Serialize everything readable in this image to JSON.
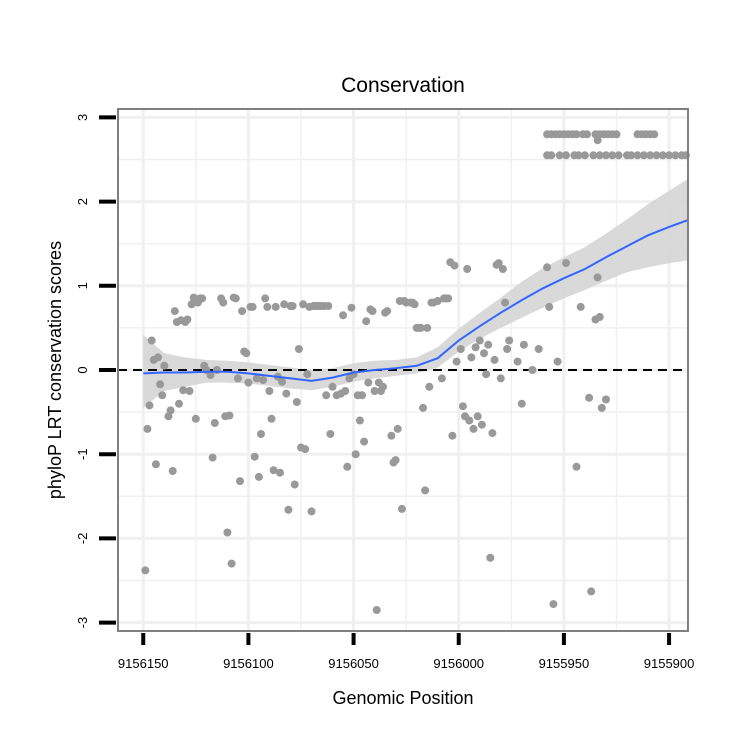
{
  "chart_data": {
    "type": "scatter",
    "title": "Conservation",
    "xlabel": "Genomic Position",
    "ylabel": "phyloP LRT conservation scores",
    "x_reversed": true,
    "xlim": [
      9156162,
      9155891
    ],
    "ylim": [
      -3.1,
      3.1
    ],
    "x_ticks": [
      9156150,
      9156100,
      9156050,
      9156000,
      9155950,
      9155900
    ],
    "x_tick_labels": [
      "9156150",
      "9156100",
      "9156050",
      "9156000",
      "9155950",
      "9155900"
    ],
    "y_ticks": [
      -3,
      -2,
      -1,
      0,
      1,
      2,
      3
    ],
    "y_tick_labels": [
      "-3",
      "-2",
      "-1",
      "0",
      "1",
      "2",
      "3"
    ],
    "reference_line": {
      "y": 0,
      "style": "dashed"
    },
    "colors": {
      "points": "#999999",
      "smooth": "#3366ff",
      "ribbon": "#d5d5d5",
      "grid": "#f0f0f0",
      "border": "#7f7f7f"
    },
    "series": [
      {
        "name": "phyloP scores",
        "kind": "points",
        "points": [
          [
            9156149,
            -2.38
          ],
          [
            9156148,
            -0.7
          ],
          [
            9156147,
            -0.42
          ],
          [
            9156146,
            0.35
          ],
          [
            9156145,
            0.12
          ],
          [
            9156144,
            -1.12
          ],
          [
            9156143,
            0.15
          ],
          [
            9156142,
            -0.17
          ],
          [
            9156141,
            -0.3
          ],
          [
            9156140,
            0.05
          ],
          [
            9156138,
            -0.55
          ],
          [
            9156137,
            -0.48
          ],
          [
            9156136,
            -1.2
          ],
          [
            9156135,
            0.7
          ],
          [
            9156134,
            0.57
          ],
          [
            9156133,
            -0.4
          ],
          [
            9156132,
            0.59
          ],
          [
            9156131,
            -0.24
          ],
          [
            9156130,
            0.57
          ],
          [
            9156129,
            0.6
          ],
          [
            9156128,
            -0.25
          ],
          [
            9156127,
            0.78
          ],
          [
            9156126,
            0.86
          ],
          [
            9156125,
            -0.58
          ],
          [
            9156124,
            0.8
          ],
          [
            9156123,
            0.85
          ],
          [
            9156122,
            0.85
          ],
          [
            9156121,
            0.05
          ],
          [
            9156120,
            0.0
          ],
          [
            9156118,
            -0.06
          ],
          [
            9156117,
            -1.04
          ],
          [
            9156116,
            -0.63
          ],
          [
            9156115,
            0.0
          ],
          [
            9156113,
            0.85
          ],
          [
            9156112,
            0.8
          ],
          [
            9156111,
            -0.55
          ],
          [
            9156110,
            -1.93
          ],
          [
            9156109,
            -0.54
          ],
          [
            9156108,
            -2.3
          ],
          [
            9156107,
            0.86
          ],
          [
            9156106,
            0.85
          ],
          [
            9156105,
            -0.1
          ],
          [
            9156104,
            -1.32
          ],
          [
            9156103,
            0.7
          ],
          [
            9156102,
            0.22
          ],
          [
            9156101,
            0.2
          ],
          [
            9156100,
            -0.15
          ],
          [
            9156099,
            0.75
          ],
          [
            9156098,
            0.75
          ],
          [
            9156097,
            -1.03
          ],
          [
            9156096,
            -0.1
          ],
          [
            9156095,
            -1.27
          ],
          [
            9156094,
            -0.76
          ],
          [
            9156093,
            -0.12
          ],
          [
            9156092,
            0.85
          ],
          [
            9156091,
            0.75
          ],
          [
            9156090,
            -0.25
          ],
          [
            9156089,
            -0.58
          ],
          [
            9156088,
            -1.19
          ],
          [
            9156087,
            0.75
          ],
          [
            9156086,
            -0.08
          ],
          [
            9156085,
            -1.22
          ],
          [
            9156084,
            -0.14
          ],
          [
            9156083,
            0.78
          ],
          [
            9156082,
            -0.28
          ],
          [
            9156081,
            -1.66
          ],
          [
            9156080,
            0.76
          ],
          [
            9156079,
            0.76
          ],
          [
            9156078,
            -1.36
          ],
          [
            9156077,
            -0.38
          ],
          [
            9156076,
            0.25
          ],
          [
            9156075,
            -0.92
          ],
          [
            9156074,
            0.78
          ],
          [
            9156073,
            -0.94
          ],
          [
            9156072,
            -0.05
          ],
          [
            9156071,
            0.75
          ],
          [
            9156070,
            -1.68
          ],
          [
            9156069,
            0.76
          ],
          [
            9156068,
            0.76
          ],
          [
            9156067,
            0.76
          ],
          [
            9156066,
            0.76
          ],
          [
            9156065,
            0.76
          ],
          [
            9156064,
            0.76
          ],
          [
            9156063,
            -0.3
          ],
          [
            9156062,
            0.76
          ],
          [
            9156061,
            -0.76
          ],
          [
            9156060,
            -0.2
          ],
          [
            9156058,
            -0.3
          ],
          [
            9156056,
            -0.28
          ],
          [
            9156055,
            0.65
          ],
          [
            9156054,
            -0.25
          ],
          [
            9156053,
            -1.15
          ],
          [
            9156052,
            -0.1
          ],
          [
            9156051,
            0.74
          ],
          [
            9156050,
            -0.05
          ],
          [
            9156049,
            -1.0
          ],
          [
            9156048,
            -0.3
          ],
          [
            9156047,
            -0.6
          ],
          [
            9156046,
            -0.3
          ],
          [
            9156045,
            -0.85
          ],
          [
            9156044,
            0.58
          ],
          [
            9156043,
            -0.15
          ],
          [
            9156042,
            0.72
          ],
          [
            9156041,
            0.7
          ],
          [
            9156040,
            -0.25
          ],
          [
            9156039,
            -2.85
          ],
          [
            9156038,
            -0.15
          ],
          [
            9156037,
            -0.25
          ],
          [
            9156036,
            -0.2
          ],
          [
            9156035,
            0.68
          ],
          [
            9156034,
            0.7
          ],
          [
            9156032,
            -0.78
          ],
          [
            9156031,
            -1.1
          ],
          [
            9156030,
            -1.07
          ],
          [
            9156029,
            -0.7
          ],
          [
            9156028,
            0.82
          ],
          [
            9156027,
            -1.65
          ],
          [
            9156026,
            0.82
          ],
          [
            9156025,
            0.8
          ],
          [
            9156023,
            0.8
          ],
          [
            9156022,
            0.8
          ],
          [
            9156021,
            0.78
          ],
          [
            9156020,
            0.5
          ],
          [
            9156019,
            0.5
          ],
          [
            9156018,
            0.5
          ],
          [
            9156017,
            -0.45
          ],
          [
            9156016,
            -1.43
          ],
          [
            9156015,
            0.5
          ],
          [
            9156014,
            -0.2
          ],
          [
            9156013,
            0.8
          ],
          [
            9156012,
            0.8
          ],
          [
            9156010,
            0.82
          ],
          [
            9156008,
            -0.1
          ],
          [
            9156007,
            0.85
          ],
          [
            9156006,
            0.85
          ],
          [
            9156005,
            0.85
          ],
          [
            9156004,
            1.28
          ],
          [
            9156003,
            -0.78
          ],
          [
            9156002,
            1.24
          ],
          [
            9156001,
            0.1
          ],
          [
            9155999,
            0.25
          ],
          [
            9155998,
            -0.43
          ],
          [
            9155997,
            -0.55
          ],
          [
            9155996,
            1.2
          ],
          [
            9155995,
            -0.6
          ],
          [
            9155994,
            0.15
          ],
          [
            9155993,
            -0.7
          ],
          [
            9155992,
            0.27
          ],
          [
            9155991,
            -0.55
          ],
          [
            9155990,
            0.35
          ],
          [
            9155989,
            -0.65
          ],
          [
            9155988,
            0.2
          ],
          [
            9155987,
            -0.05
          ],
          [
            9155986,
            0.3
          ],
          [
            9155985,
            -2.23
          ],
          [
            9155984,
            -0.75
          ],
          [
            9155983,
            0.12
          ],
          [
            9155982,
            1.25
          ],
          [
            9155981,
            1.27
          ],
          [
            9155980,
            -0.1
          ],
          [
            9155979,
            1.2
          ],
          [
            9155978,
            0.8
          ],
          [
            9155977,
            0.25
          ],
          [
            9155976,
            0.35
          ],
          [
            9155972,
            0.1
          ],
          [
            9155970,
            -0.4
          ],
          [
            9155969,
            0.3
          ],
          [
            9155965,
            0.0
          ],
          [
            9155962,
            0.25
          ],
          [
            9155958,
            1.22
          ],
          [
            9155957,
            0.75
          ],
          [
            9155955,
            -2.78
          ],
          [
            9155953,
            0.1
          ],
          [
            9155949,
            1.27
          ],
          [
            9155944,
            -1.15
          ],
          [
            9155942,
            0.75
          ],
          [
            9155938,
            -0.33
          ],
          [
            9155937,
            -2.63
          ],
          [
            9155935,
            0.6
          ],
          [
            9155934,
            1.1
          ],
          [
            9155933,
            0.63
          ],
          [
            9155932,
            -0.45
          ],
          [
            9155930,
            -0.35
          ],
          [
            9155934,
            2.73
          ],
          [
            9155958,
            2.8
          ],
          [
            9155956,
            2.8
          ],
          [
            9155954,
            2.8
          ],
          [
            9155952,
            2.8
          ],
          [
            9155950,
            2.8
          ],
          [
            9155948,
            2.8
          ],
          [
            9155946,
            2.8
          ],
          [
            9155944,
            2.8
          ],
          [
            9155941,
            2.8
          ],
          [
            9155939,
            2.8
          ],
          [
            9155935,
            2.8
          ],
          [
            9155933,
            2.8
          ],
          [
            9155931,
            2.8
          ],
          [
            9155929,
            2.8
          ],
          [
            9155927,
            2.8
          ],
          [
            9155925,
            2.8
          ],
          [
            9155915,
            2.8
          ],
          [
            9155913,
            2.8
          ],
          [
            9155911,
            2.8
          ],
          [
            9155909,
            2.8
          ],
          [
            9155907,
            2.8
          ],
          [
            9155958,
            2.55
          ],
          [
            9155956,
            2.55
          ],
          [
            9155952,
            2.55
          ],
          [
            9155949,
            2.55
          ],
          [
            9155945,
            2.55
          ],
          [
            9155943,
            2.55
          ],
          [
            9155940,
            2.55
          ],
          [
            9155936,
            2.55
          ],
          [
            9155933,
            2.55
          ],
          [
            9155930,
            2.55
          ],
          [
            9155927,
            2.55
          ],
          [
            9155924,
            2.55
          ],
          [
            9155920,
            2.55
          ],
          [
            9155918,
            2.55
          ],
          [
            9155915,
            2.55
          ],
          [
            9155912,
            2.55
          ],
          [
            9155909,
            2.55
          ],
          [
            9155906,
            2.55
          ],
          [
            9155903,
            2.55
          ],
          [
            9155900,
            2.55
          ],
          [
            9155897,
            2.55
          ],
          [
            9155894,
            2.55
          ],
          [
            9155892,
            2.55
          ]
        ]
      },
      {
        "name": "smooth fit",
        "kind": "line",
        "x": [
          9156150,
          9156140,
          9156130,
          9156120,
          9156110,
          9156100,
          9156090,
          9156080,
          9156070,
          9156060,
          9156050,
          9156040,
          9156030,
          9156020,
          9156010,
          9156000,
          9155990,
          9155980,
          9155970,
          9155960,
          9155950,
          9155940,
          9155930,
          9155920,
          9155910,
          9155900,
          9155891
        ],
        "y": [
          -0.04,
          -0.03,
          -0.03,
          -0.02,
          -0.02,
          -0.04,
          -0.07,
          -0.1,
          -0.13,
          -0.09,
          -0.03,
          0.0,
          0.02,
          0.05,
          0.14,
          0.35,
          0.52,
          0.68,
          0.83,
          0.97,
          1.09,
          1.2,
          1.34,
          1.47,
          1.6,
          1.7,
          1.78
        ],
        "ci_lower": [
          -0.45,
          -0.25,
          -0.2,
          -0.15,
          -0.15,
          -0.16,
          -0.19,
          -0.22,
          -0.24,
          -0.2,
          -0.14,
          -0.1,
          -0.07,
          -0.04,
          0.03,
          0.22,
          0.37,
          0.5,
          0.62,
          0.74,
          0.85,
          0.95,
          1.06,
          1.16,
          1.22,
          1.27,
          1.3
        ],
        "ci_upper": [
          0.42,
          0.2,
          0.15,
          0.12,
          0.11,
          0.09,
          0.06,
          0.03,
          0.0,
          0.02,
          0.08,
          0.11,
          0.12,
          0.15,
          0.27,
          0.49,
          0.68,
          0.86,
          1.05,
          1.21,
          1.34,
          1.46,
          1.62,
          1.79,
          1.97,
          2.13,
          2.27
        ]
      }
    ]
  }
}
